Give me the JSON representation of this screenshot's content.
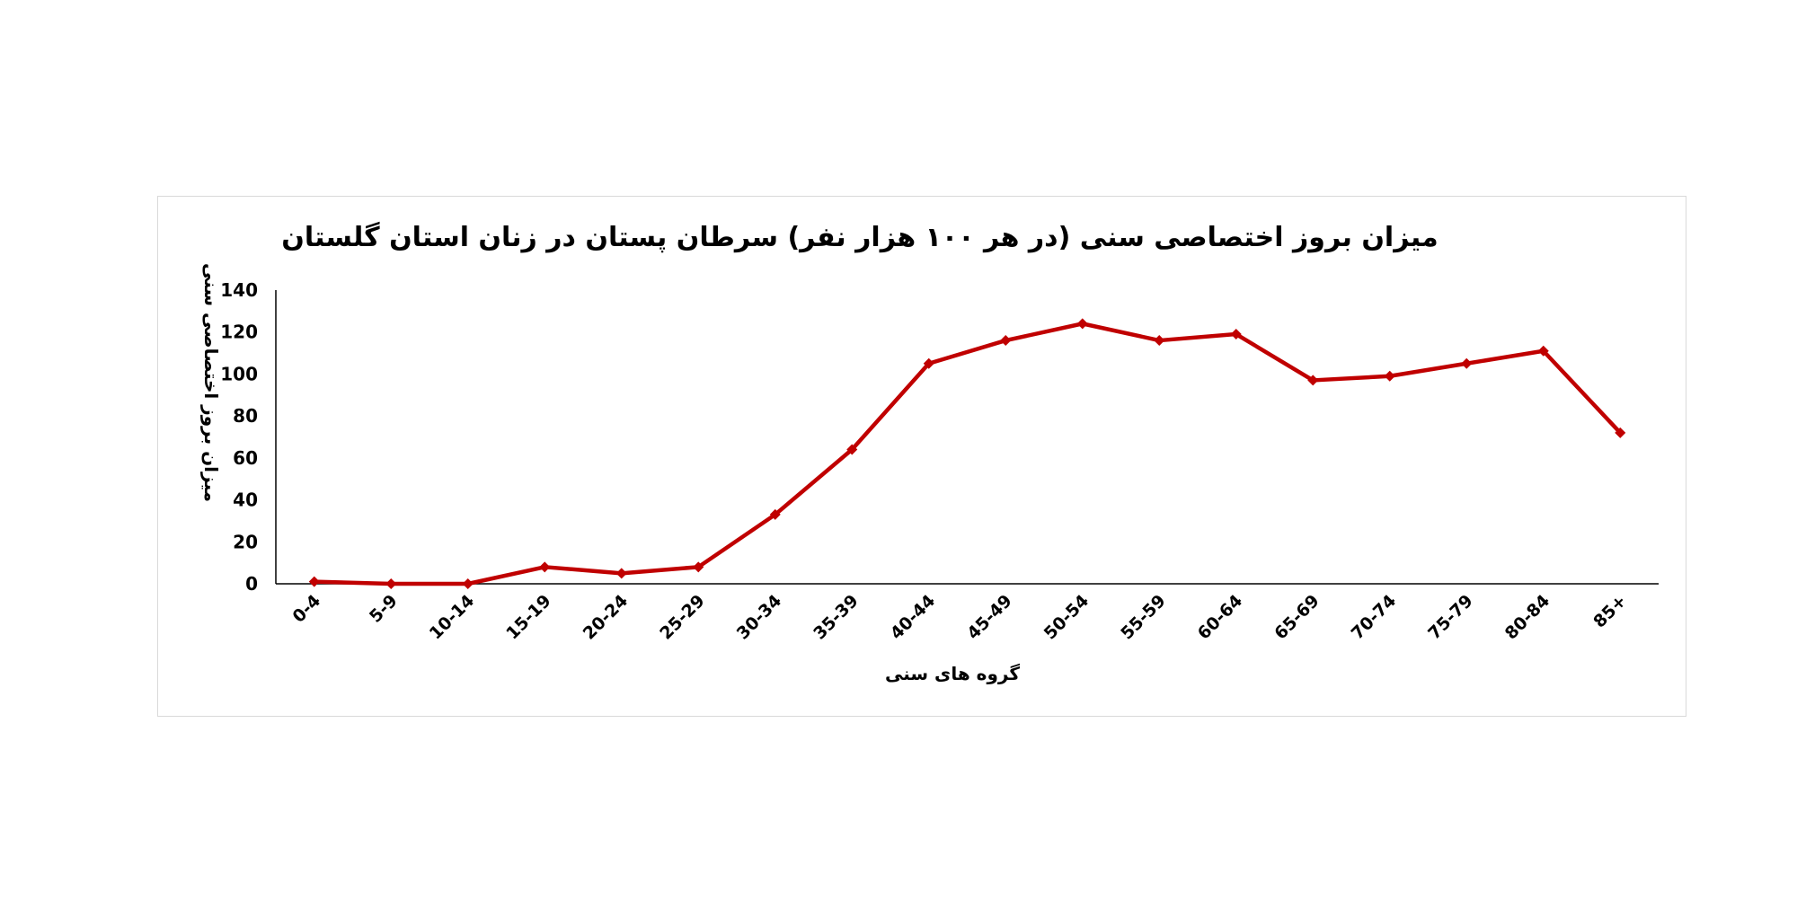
{
  "chart_data": {
    "type": "line",
    "title": "میزان بروز اختصاصی سنی (در هر ۱۰۰ هزار نفر) سرطان پستان در زنان استان گلستان",
    "xlabel": "گروه های سنی",
    "ylabel": "میزان بروز اختصاصی سنی",
    "categories": [
      "0-4",
      "5-9",
      "10-14",
      "15-19",
      "20-24",
      "25-29",
      "30-34",
      "35-39",
      "40-44",
      "45-49",
      "50-54",
      "55-59",
      "60-64",
      "65-69",
      "70-74",
      "75-79",
      "80-84",
      "85+"
    ],
    "values": [
      1,
      0,
      0,
      8,
      5,
      8,
      33,
      64,
      105,
      116,
      124,
      116,
      119,
      97,
      99,
      105,
      111,
      72
    ],
    "ylim": [
      0,
      140
    ],
    "yticks": [
      0,
      20,
      40,
      60,
      80,
      100,
      120,
      140
    ],
    "grid": false,
    "legend": "none",
    "colors": {
      "series": "#c00000",
      "axis": "#000000",
      "frame": "#d9d9d9"
    }
  }
}
